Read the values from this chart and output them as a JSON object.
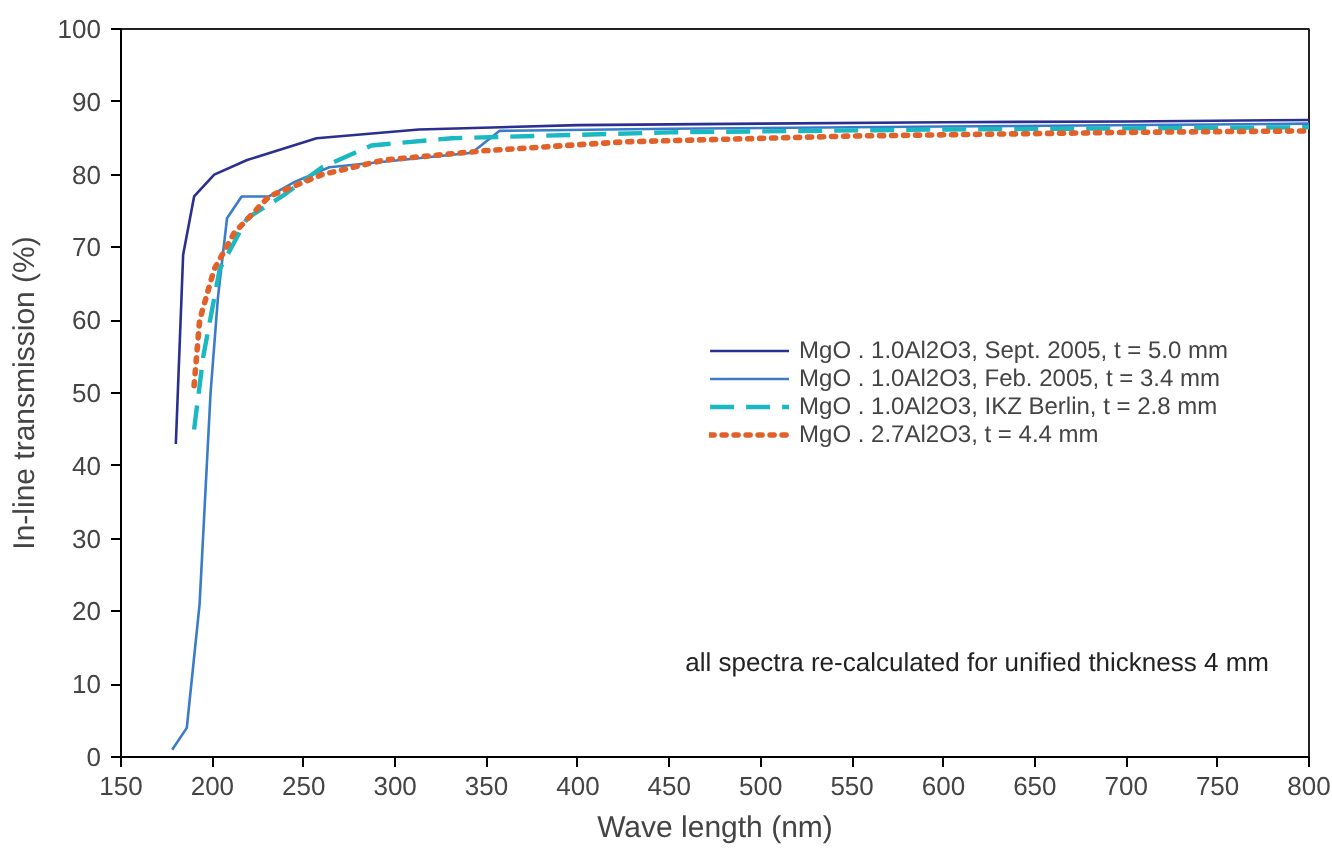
{
  "chart_data": {
    "type": "line",
    "xlabel": "Wave length (nm)",
    "ylabel": "In-line transmission (%)",
    "xlim": [
      150,
      800
    ],
    "xticks": [
      150,
      200,
      250,
      300,
      350,
      400,
      450,
      500,
      550,
      600,
      650,
      700,
      750,
      800
    ],
    "ylim": [
      0,
      100
    ],
    "yticks": [
      0,
      10,
      20,
      30,
      40,
      50,
      60,
      70,
      80,
      90,
      100
    ],
    "grid": false,
    "legend": "right",
    "marker": "none",
    "annotations": [
      "all spectra re-calculated for unified thickness 4 mm"
    ],
    "series": [
      {
        "name": "MgO . 1.0Al2O3, Sept. 2005, t = 5.0 mm",
        "color": "#2b2f8f",
        "line_style": "solid",
        "x": [
          180,
          184,
          190,
          201,
          219,
          257,
          313,
          400,
          500,
          600,
          700,
          800
        ],
        "values": [
          43,
          69,
          77,
          80,
          82,
          85,
          86.2,
          86.8,
          87,
          87.2,
          87.3,
          87.5
        ]
      },
      {
        "name": "MgO . 1.0Al2O3, Feb. 2005, t = 3.4 mm",
        "color": "#3a7cc8",
        "line_style": "solid",
        "x": [
          178,
          186,
          193,
          199,
          203,
          208,
          216,
          231,
          245,
          264,
          283,
          342,
          357,
          450,
          600,
          800
        ],
        "values": [
          1,
          4,
          21,
          50,
          63,
          74,
          77,
          77,
          79,
          81,
          81.5,
          83,
          86,
          86.3,
          86.6,
          87
        ]
      },
      {
        "name": "MgO . 1.0Al2O3, IKZ Berlin, t = 2.8 mm",
        "color": "#1ab8c0",
        "line_style": "dashed",
        "x": [
          190,
          195,
          204,
          219,
          238,
          260,
          287,
          331,
          450,
          600,
          800
        ],
        "values": [
          45,
          55,
          67,
          74,
          77,
          81,
          84,
          85,
          85.8,
          86.2,
          86.5
        ]
      },
      {
        "name": "MgO . 2.7Al2O3, t = 4.4 mm",
        "color": "#e0622a",
        "line_style": "dotted",
        "x": [
          190,
          193,
          201,
          212,
          231,
          260,
          294,
          350,
          425,
          550,
          700,
          800
        ],
        "values": [
          51,
          60,
          67,
          72,
          77,
          80,
          82,
          83.3,
          84.5,
          85.3,
          85.8,
          86
        ]
      }
    ]
  }
}
